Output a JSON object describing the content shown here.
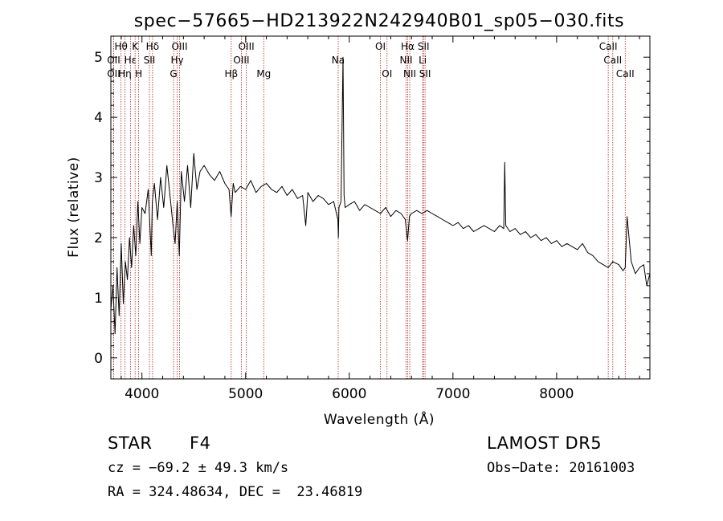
{
  "chart_data": {
    "type": "line",
    "title": "spec−57665−HD213922N242940B01_sp05−030.fits",
    "xlabel": "Wavelength (Å)",
    "ylabel": "Flux (relative)",
    "xlim": [
      3700,
      8900
    ],
    "ylim": [
      -0.35,
      5.35
    ],
    "x_ticks": [
      4000,
      5000,
      6000,
      7000,
      8000
    ],
    "y_ticks": [
      0,
      1,
      2,
      3,
      4,
      5
    ],
    "grid": false,
    "series": [
      {
        "x": [
          3700,
          3720,
          3740,
          3760,
          3780,
          3800,
          3820,
          3840,
          3860,
          3880,
          3900,
          3920,
          3940,
          3960,
          3980,
          4000,
          4030,
          4060,
          4090,
          4100,
          4120,
          4150,
          4180,
          4210,
          4240,
          4270,
          4300,
          4320,
          4340,
          4360,
          4380,
          4410,
          4440,
          4470,
          4500,
          4530,
          4560,
          4600,
          4650,
          4700,
          4750,
          4800,
          4840,
          4860,
          4880,
          4900,
          4950,
          5000,
          5050,
          5100,
          5150,
          5200,
          5250,
          5300,
          5350,
          5400,
          5450,
          5500,
          5550,
          5580,
          5600,
          5650,
          5700,
          5750,
          5800,
          5850,
          5890,
          5895,
          5900,
          5920,
          5940,
          5950,
          5960,
          6000,
          6050,
          6100,
          6150,
          6200,
          6250,
          6300,
          6350,
          6400,
          6450,
          6500,
          6540,
          6563,
          6580,
          6600,
          6650,
          6700,
          6750,
          6800,
          6850,
          6900,
          6950,
          7000,
          7050,
          7100,
          7150,
          7200,
          7250,
          7300,
          7350,
          7400,
          7450,
          7490,
          7500,
          7510,
          7550,
          7600,
          7650,
          7700,
          7750,
          7800,
          7850,
          7900,
          7950,
          8000,
          8050,
          8100,
          8150,
          8200,
          8250,
          8300,
          8350,
          8400,
          8450,
          8498,
          8542,
          8600,
          8640,
          8662,
          8680,
          8720,
          8760,
          8800,
          8840,
          8870,
          8900
        ],
        "y": [
          0.8,
          1.2,
          0.4,
          1.5,
          0.7,
          1.9,
          0.9,
          1.6,
          1.3,
          2.0,
          1.5,
          2.2,
          1.7,
          2.6,
          1.9,
          2.5,
          2.4,
          2.8,
          1.7,
          2.6,
          2.9,
          2.3,
          3.0,
          2.5,
          3.2,
          2.7,
          2.2,
          1.9,
          2.6,
          1.7,
          3.1,
          2.6,
          3.2,
          2.5,
          3.4,
          2.8,
          3.1,
          3.2,
          3.05,
          2.95,
          3.1,
          2.9,
          2.8,
          2.35,
          2.9,
          2.75,
          2.85,
          2.8,
          2.95,
          2.75,
          2.85,
          2.9,
          2.8,
          2.75,
          2.85,
          2.7,
          2.8,
          2.65,
          2.7,
          2.2,
          2.75,
          2.6,
          2.7,
          2.65,
          2.55,
          2.6,
          2.3,
          2.0,
          2.5,
          2.6,
          5.0,
          2.7,
          2.5,
          2.55,
          2.6,
          2.45,
          2.55,
          2.5,
          2.45,
          2.4,
          2.5,
          2.35,
          2.45,
          2.4,
          2.3,
          1.95,
          2.35,
          2.4,
          2.45,
          2.4,
          2.45,
          2.4,
          2.35,
          2.3,
          2.25,
          2.2,
          2.25,
          2.15,
          2.2,
          2.1,
          2.15,
          2.2,
          2.15,
          2.1,
          2.2,
          2.15,
          3.25,
          2.2,
          2.1,
          2.15,
          2.05,
          2.1,
          2.0,
          2.05,
          1.95,
          2.0,
          1.9,
          1.95,
          1.85,
          1.9,
          1.85,
          1.8,
          1.9,
          1.75,
          1.7,
          1.6,
          1.55,
          1.5,
          1.6,
          1.55,
          1.45,
          1.5,
          2.35,
          1.6,
          1.4,
          1.5,
          1.55,
          1.2,
          1.4
        ]
      }
    ],
    "line_markers": [
      {
        "label": "Hθ",
        "x": 3798,
        "row": 0
      },
      {
        "label": "OII",
        "x": 3727,
        "row": 1
      },
      {
        "label": "OII",
        "x": 3727,
        "row": 2
      },
      {
        "label": "K",
        "x": 3934,
        "row": 0
      },
      {
        "label": "Hε",
        "x": 3889,
        "row": 1
      },
      {
        "label": "Hη",
        "x": 3835,
        "row": 2
      },
      {
        "label": "H",
        "x": 3968,
        "row": 2
      },
      {
        "label": "Hδ",
        "x": 4102,
        "row": 0
      },
      {
        "label": "SII",
        "x": 4072,
        "row": 1
      },
      {
        "label": "OIII",
        "x": 4363,
        "row": 0
      },
      {
        "label": "Hγ",
        "x": 4340,
        "row": 1
      },
      {
        "label": "G",
        "x": 4305,
        "row": 2
      },
      {
        "label": "OIII",
        "x": 5007,
        "row": 0
      },
      {
        "label": "OIII",
        "x": 4959,
        "row": 1
      },
      {
        "label": "Hβ",
        "x": 4861,
        "row": 2
      },
      {
        "label": "Mg",
        "x": 5175,
        "row": 2
      },
      {
        "label": "Na",
        "x": 5893,
        "row": 1
      },
      {
        "label": "OI",
        "x": 6300,
        "row": 0
      },
      {
        "label": "OI",
        "x": 6364,
        "row": 2
      },
      {
        "label": "Hα",
        "x": 6563,
        "row": 0
      },
      {
        "label": "SII",
        "x": 6716,
        "row": 0
      },
      {
        "label": "NII",
        "x": 6548,
        "row": 1
      },
      {
        "label": "Li",
        "x": 6708,
        "row": 1
      },
      {
        "label": "NII",
        "x": 6583,
        "row": 2
      },
      {
        "label": "SII",
        "x": 6731,
        "row": 2
      },
      {
        "label": "CaII",
        "x": 8498,
        "row": 0
      },
      {
        "label": "CaII",
        "x": 8542,
        "row": 1
      },
      {
        "label": "CaII",
        "x": 8662,
        "row": 2
      }
    ]
  },
  "info": {
    "class": "STAR",
    "subclass": "F4",
    "survey": "LAMOST DR5",
    "cz": "cz = −69.2 ± 49.3 km/s",
    "obs_date": "Obs−Date: 20161003",
    "radec": "RA = 324.48634, DEC =  23.46819"
  },
  "colors": {
    "spectrum": "#000000",
    "marker_line": "#b22222",
    "background": "#ffffff"
  }
}
